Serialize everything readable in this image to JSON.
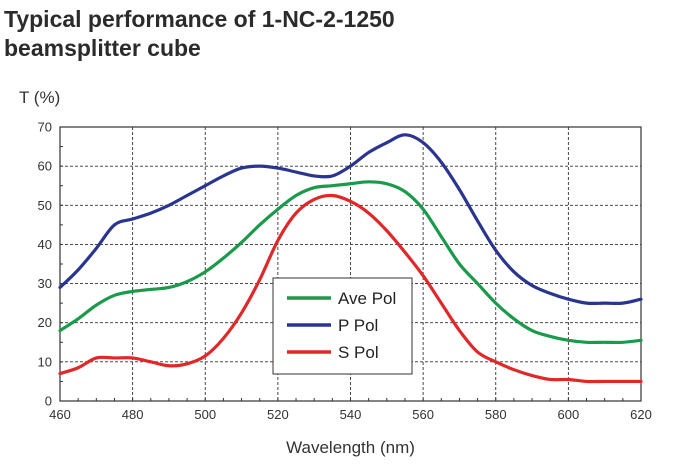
{
  "chart_data": {
    "type": "line",
    "title": "Typical performance of 1-NC-2-1250\nbeamsplitter cube",
    "xlabel": "Wavelength (nm)",
    "ylabel": "T (%)",
    "xlim": [
      460,
      620
    ],
    "ylim": [
      0,
      70
    ],
    "x_ticks": [
      460,
      480,
      500,
      520,
      540,
      560,
      580,
      600,
      620
    ],
    "y_ticks": [
      0,
      10,
      20,
      30,
      40,
      50,
      60,
      70
    ],
    "grid": true,
    "legend_position": "center",
    "series": [
      {
        "name": "Ave Pol",
        "color": "#1a9a4a",
        "points": [
          [
            460,
            18
          ],
          [
            465,
            21
          ],
          [
            470,
            24.5
          ],
          [
            475,
            27
          ],
          [
            480,
            28
          ],
          [
            485,
            28.5
          ],
          [
            490,
            29
          ],
          [
            495,
            30.5
          ],
          [
            500,
            33
          ],
          [
            505,
            36.5
          ],
          [
            510,
            40.5
          ],
          [
            515,
            45
          ],
          [
            520,
            49
          ],
          [
            525,
            52.5
          ],
          [
            530,
            54.5
          ],
          [
            535,
            55
          ],
          [
            540,
            55.5
          ],
          [
            545,
            56
          ],
          [
            550,
            55.5
          ],
          [
            555,
            53.5
          ],
          [
            560,
            49
          ],
          [
            565,
            42
          ],
          [
            570,
            35
          ],
          [
            575,
            30
          ],
          [
            580,
            25
          ],
          [
            585,
            21
          ],
          [
            590,
            18
          ],
          [
            595,
            16.5
          ],
          [
            600,
            15.5
          ],
          [
            605,
            15
          ],
          [
            610,
            15
          ],
          [
            615,
            15
          ],
          [
            620,
            15.5
          ]
        ]
      },
      {
        "name": "P Pol",
        "color": "#2a3590",
        "points": [
          [
            460,
            29
          ],
          [
            465,
            33.5
          ],
          [
            470,
            39
          ],
          [
            475,
            45
          ],
          [
            480,
            46.5
          ],
          [
            485,
            48
          ],
          [
            490,
            50
          ],
          [
            495,
            52.5
          ],
          [
            500,
            55
          ],
          [
            505,
            57.5
          ],
          [
            510,
            59.5
          ],
          [
            515,
            60
          ],
          [
            520,
            59.5
          ],
          [
            525,
            58.5
          ],
          [
            530,
            57.5
          ],
          [
            535,
            57.5
          ],
          [
            540,
            60
          ],
          [
            545,
            63.5
          ],
          [
            550,
            66
          ],
          [
            555,
            68
          ],
          [
            560,
            66
          ],
          [
            565,
            61
          ],
          [
            570,
            54
          ],
          [
            575,
            46
          ],
          [
            580,
            38.5
          ],
          [
            585,
            33
          ],
          [
            590,
            29.5
          ],
          [
            595,
            27.5
          ],
          [
            600,
            26
          ],
          [
            605,
            25
          ],
          [
            610,
            25
          ],
          [
            615,
            25
          ],
          [
            620,
            26
          ]
        ]
      },
      {
        "name": "S Pol",
        "color": "#e02828",
        "points": [
          [
            460,
            7
          ],
          [
            465,
            8.5
          ],
          [
            470,
            11
          ],
          [
            475,
            11
          ],
          [
            480,
            11
          ],
          [
            485,
            10
          ],
          [
            490,
            9
          ],
          [
            495,
            9.5
          ],
          [
            500,
            11.5
          ],
          [
            505,
            16
          ],
          [
            510,
            22.5
          ],
          [
            515,
            31
          ],
          [
            520,
            41
          ],
          [
            525,
            48
          ],
          [
            530,
            51.5
          ],
          [
            535,
            52.5
          ],
          [
            540,
            51
          ],
          [
            545,
            48
          ],
          [
            550,
            43.5
          ],
          [
            555,
            38
          ],
          [
            560,
            32
          ],
          [
            565,
            25
          ],
          [
            570,
            18
          ],
          [
            575,
            12.5
          ],
          [
            580,
            10
          ],
          [
            585,
            8
          ],
          [
            590,
            6.5
          ],
          [
            595,
            5.5
          ],
          [
            600,
            5.5
          ],
          [
            605,
            5
          ],
          [
            610,
            5
          ],
          [
            615,
            5
          ],
          [
            620,
            5
          ]
        ]
      }
    ]
  }
}
